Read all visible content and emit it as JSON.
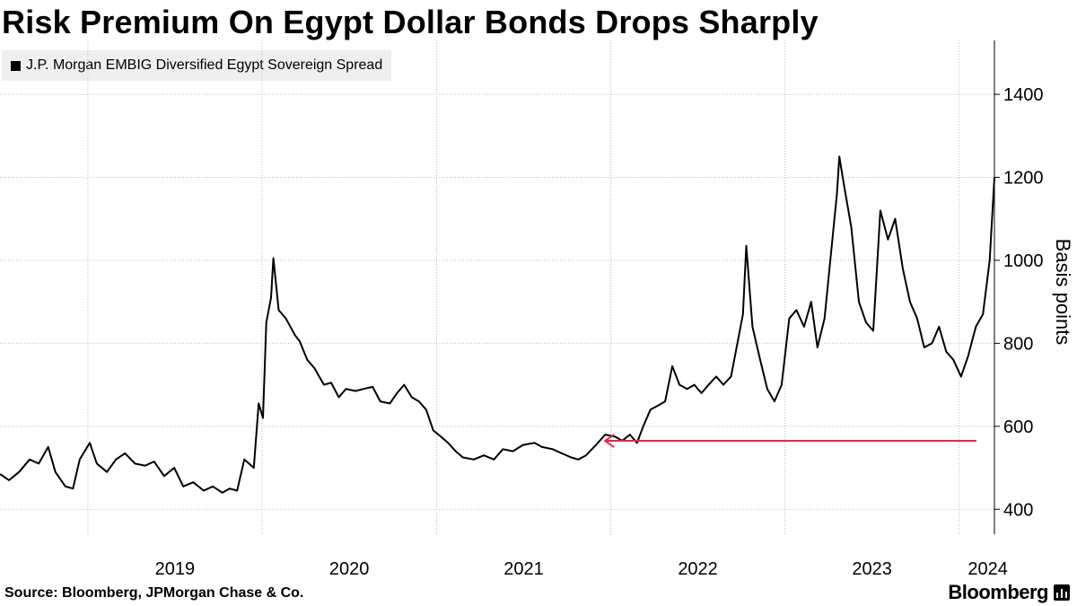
{
  "header": {
    "title": "Risk Premium On Egypt Dollar Bonds Drops Sharply"
  },
  "footer": {
    "source": "Source: Bloomberg, JPMorgan Chase & Co.",
    "brand": "Bloomberg"
  },
  "colors": {
    "line": "#000000",
    "arrow": "#e8264a",
    "grid": "#bdbdbd",
    "legend_bg": "#efefef"
  },
  "chart_data": {
    "type": "line",
    "title": "Risk Premium On Egypt Dollar Bonds Drops Sharply",
    "ylabel": "Basis points",
    "xlabel": "",
    "ylim": [
      340,
      1530
    ],
    "xlim": [
      "2018-07-01",
      "2024-03-15"
    ],
    "y_ticks": [
      400,
      600,
      800,
      1000,
      1200,
      1400
    ],
    "x_ticks": [
      "2019",
      "2020",
      "2021",
      "2022",
      "2023",
      "2024"
    ],
    "grid": true,
    "legend_position": "top-left",
    "series": [
      {
        "name": "J.P. Morgan EMBIG Diversified Egypt Sovereign Spread",
        "points": [
          [
            "2018-07-01",
            485
          ],
          [
            "2018-07-20",
            470
          ],
          [
            "2018-08-10",
            490
          ],
          [
            "2018-09-01",
            520
          ],
          [
            "2018-09-20",
            510
          ],
          [
            "2018-10-10",
            550
          ],
          [
            "2018-10-25",
            490
          ],
          [
            "2018-11-15",
            455
          ],
          [
            "2018-12-01",
            450
          ],
          [
            "2018-12-15",
            520
          ],
          [
            "2019-01-05",
            560
          ],
          [
            "2019-01-20",
            510
          ],
          [
            "2019-02-10",
            490
          ],
          [
            "2019-03-01",
            520
          ],
          [
            "2019-03-20",
            535
          ],
          [
            "2019-04-10",
            510
          ],
          [
            "2019-05-01",
            505
          ],
          [
            "2019-05-20",
            515
          ],
          [
            "2019-06-10",
            480
          ],
          [
            "2019-07-01",
            500
          ],
          [
            "2019-07-20",
            455
          ],
          [
            "2019-08-10",
            465
          ],
          [
            "2019-09-01",
            445
          ],
          [
            "2019-09-20",
            455
          ],
          [
            "2019-10-10",
            440
          ],
          [
            "2019-10-25",
            450
          ],
          [
            "2019-11-10",
            445
          ],
          [
            "2019-11-25",
            520
          ],
          [
            "2019-12-15",
            500
          ],
          [
            "2019-12-25",
            655
          ],
          [
            "2020-01-03",
            620
          ],
          [
            "2020-01-10",
            850
          ],
          [
            "2020-01-20",
            910
          ],
          [
            "2020-01-25",
            1005
          ],
          [
            "2020-02-05",
            880
          ],
          [
            "2020-02-20",
            860
          ],
          [
            "2020-03-10",
            820
          ],
          [
            "2020-03-20",
            805
          ],
          [
            "2020-04-05",
            760
          ],
          [
            "2020-04-20",
            740
          ],
          [
            "2020-05-10",
            700
          ],
          [
            "2020-05-25",
            705
          ],
          [
            "2020-06-10",
            670
          ],
          [
            "2020-06-25",
            690
          ],
          [
            "2020-07-15",
            685
          ],
          [
            "2020-08-01",
            690
          ],
          [
            "2020-08-20",
            695
          ],
          [
            "2020-09-05",
            660
          ],
          [
            "2020-09-25",
            655
          ],
          [
            "2020-10-10",
            680
          ],
          [
            "2020-10-25",
            700
          ],
          [
            "2020-11-10",
            670
          ],
          [
            "2020-11-25",
            660
          ],
          [
            "2020-12-10",
            640
          ],
          [
            "2020-12-25",
            590
          ],
          [
            "2021-01-10",
            575
          ],
          [
            "2021-01-25",
            560
          ],
          [
            "2021-02-10",
            540
          ],
          [
            "2021-02-25",
            525
          ],
          [
            "2021-03-20",
            520
          ],
          [
            "2021-04-10",
            530
          ],
          [
            "2021-05-01",
            520
          ],
          [
            "2021-05-20",
            545
          ],
          [
            "2021-06-10",
            540
          ],
          [
            "2021-07-01",
            555
          ],
          [
            "2021-07-25",
            560
          ],
          [
            "2021-08-10",
            550
          ],
          [
            "2021-09-01",
            545
          ],
          [
            "2021-09-20",
            535
          ],
          [
            "2021-10-10",
            525
          ],
          [
            "2021-10-25",
            520
          ],
          [
            "2021-11-10",
            530
          ],
          [
            "2021-12-01",
            555
          ],
          [
            "2021-12-20",
            580
          ],
          [
            "2022-01-10",
            575
          ],
          [
            "2022-01-25",
            565
          ],
          [
            "2022-02-10",
            580
          ],
          [
            "2022-02-25",
            560
          ],
          [
            "2022-03-10",
            600
          ],
          [
            "2022-03-25",
            640
          ],
          [
            "2022-04-10",
            650
          ],
          [
            "2022-04-25",
            660
          ],
          [
            "2022-05-10",
            745
          ],
          [
            "2022-05-25",
            700
          ],
          [
            "2022-06-10",
            690
          ],
          [
            "2022-06-25",
            700
          ],
          [
            "2022-07-10",
            680
          ],
          [
            "2022-07-25",
            700
          ],
          [
            "2022-08-10",
            720
          ],
          [
            "2022-08-25",
            700
          ],
          [
            "2022-09-10",
            720
          ],
          [
            "2022-09-25",
            810
          ],
          [
            "2022-10-05",
            870
          ],
          [
            "2022-10-12",
            1035
          ],
          [
            "2022-10-25",
            840
          ],
          [
            "2022-11-10",
            760
          ],
          [
            "2022-11-25",
            690
          ],
          [
            "2022-12-10",
            660
          ],
          [
            "2022-12-25",
            700
          ],
          [
            "2023-01-10",
            860
          ],
          [
            "2023-01-25",
            880
          ],
          [
            "2023-02-10",
            840
          ],
          [
            "2023-02-25",
            900
          ],
          [
            "2023-03-10",
            790
          ],
          [
            "2023-03-25",
            860
          ],
          [
            "2023-04-10",
            1045
          ],
          [
            "2023-04-20",
            1160
          ],
          [
            "2023-04-25",
            1250
          ],
          [
            "2023-05-05",
            1180
          ],
          [
            "2023-05-20",
            1080
          ],
          [
            "2023-06-05",
            900
          ],
          [
            "2023-06-20",
            850
          ],
          [
            "2023-07-05",
            830
          ],
          [
            "2023-07-20",
            1120
          ],
          [
            "2023-08-05",
            1050
          ],
          [
            "2023-08-20",
            1100
          ],
          [
            "2023-09-05",
            980
          ],
          [
            "2023-09-20",
            900
          ],
          [
            "2023-10-05",
            860
          ],
          [
            "2023-10-20",
            790
          ],
          [
            "2023-11-05",
            800
          ],
          [
            "2023-11-20",
            840
          ],
          [
            "2023-12-05",
            780
          ],
          [
            "2023-12-20",
            760
          ],
          [
            "2024-01-05",
            720
          ],
          [
            "2024-01-20",
            770
          ],
          [
            "2024-02-05",
            840
          ],
          [
            "2024-02-20",
            870
          ],
          [
            "2024-03-05",
            1000
          ],
          [
            "2024-03-15",
            1200
          ]
        ]
      }
    ],
    "annotation": {
      "type": "arrow",
      "from_date": "2024-03-15",
      "to_date": "2021-12-20",
      "value": 565
    }
  }
}
